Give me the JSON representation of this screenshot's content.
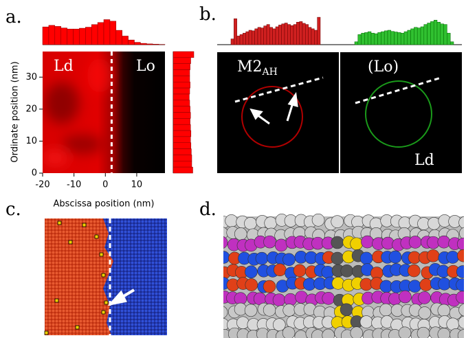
{
  "panel_a": {
    "label": "a.",
    "chart_data": {
      "type": "heatmap",
      "xlabel": "Abscissa position (nm)",
      "ylabel": "Ordinate position (nm)",
      "xlim": [
        -20,
        19
      ],
      "ylim": [
        0,
        38
      ],
      "xticks": [
        -20,
        -10,
        0,
        10
      ],
      "yticks": [
        0,
        10,
        20,
        30
      ],
      "region_labels": [
        "Ld",
        "Lo"
      ],
      "boundary_x": 2,
      "top_histogram": [
        0.68,
        0.74,
        0.7,
        0.64,
        0.6,
        0.6,
        0.63,
        0.67,
        0.77,
        0.85,
        0.96,
        0.9,
        0.55,
        0.33,
        0.18,
        0.09,
        0.05,
        0.03,
        0.02,
        0.01
      ],
      "right_histogram": [
        1.0,
        0.85,
        0.82,
        0.8,
        0.8,
        0.82,
        0.8,
        0.78,
        0.8,
        0.82,
        0.84,
        0.82,
        0.84,
        0.86,
        0.84,
        0.86,
        0.88,
        0.9,
        0.9,
        0.95
      ]
    }
  },
  "panel_b": {
    "label": "b.",
    "probe_label": {
      "main": "M2",
      "subscript": "AH"
    },
    "phase_labels": [
      "(Lo)",
      "Ld"
    ],
    "red_histogram": [
      0.2,
      0.9,
      0.3,
      0.35,
      0.4,
      0.45,
      0.5,
      0.48,
      0.55,
      0.6,
      0.58,
      0.65,
      0.7,
      0.6,
      0.55,
      0.62,
      0.68,
      0.72,
      0.75,
      0.7,
      0.66,
      0.7,
      0.78,
      0.8,
      0.74,
      0.7,
      0.6,
      0.55,
      0.5,
      0.95
    ],
    "green_histogram": [
      0.1,
      0.35,
      0.4,
      0.42,
      0.45,
      0.4,
      0.38,
      0.42,
      0.45,
      0.48,
      0.5,
      0.46,
      0.44,
      0.42,
      0.4,
      0.45,
      0.5,
      0.55,
      0.6,
      0.58,
      0.62,
      0.7,
      0.75,
      0.8,
      0.85,
      0.78,
      0.72,
      0.7,
      0.4,
      0.1
    ]
  },
  "panel_c": {
    "label": "c."
  },
  "panel_d": {
    "label": "d."
  }
}
